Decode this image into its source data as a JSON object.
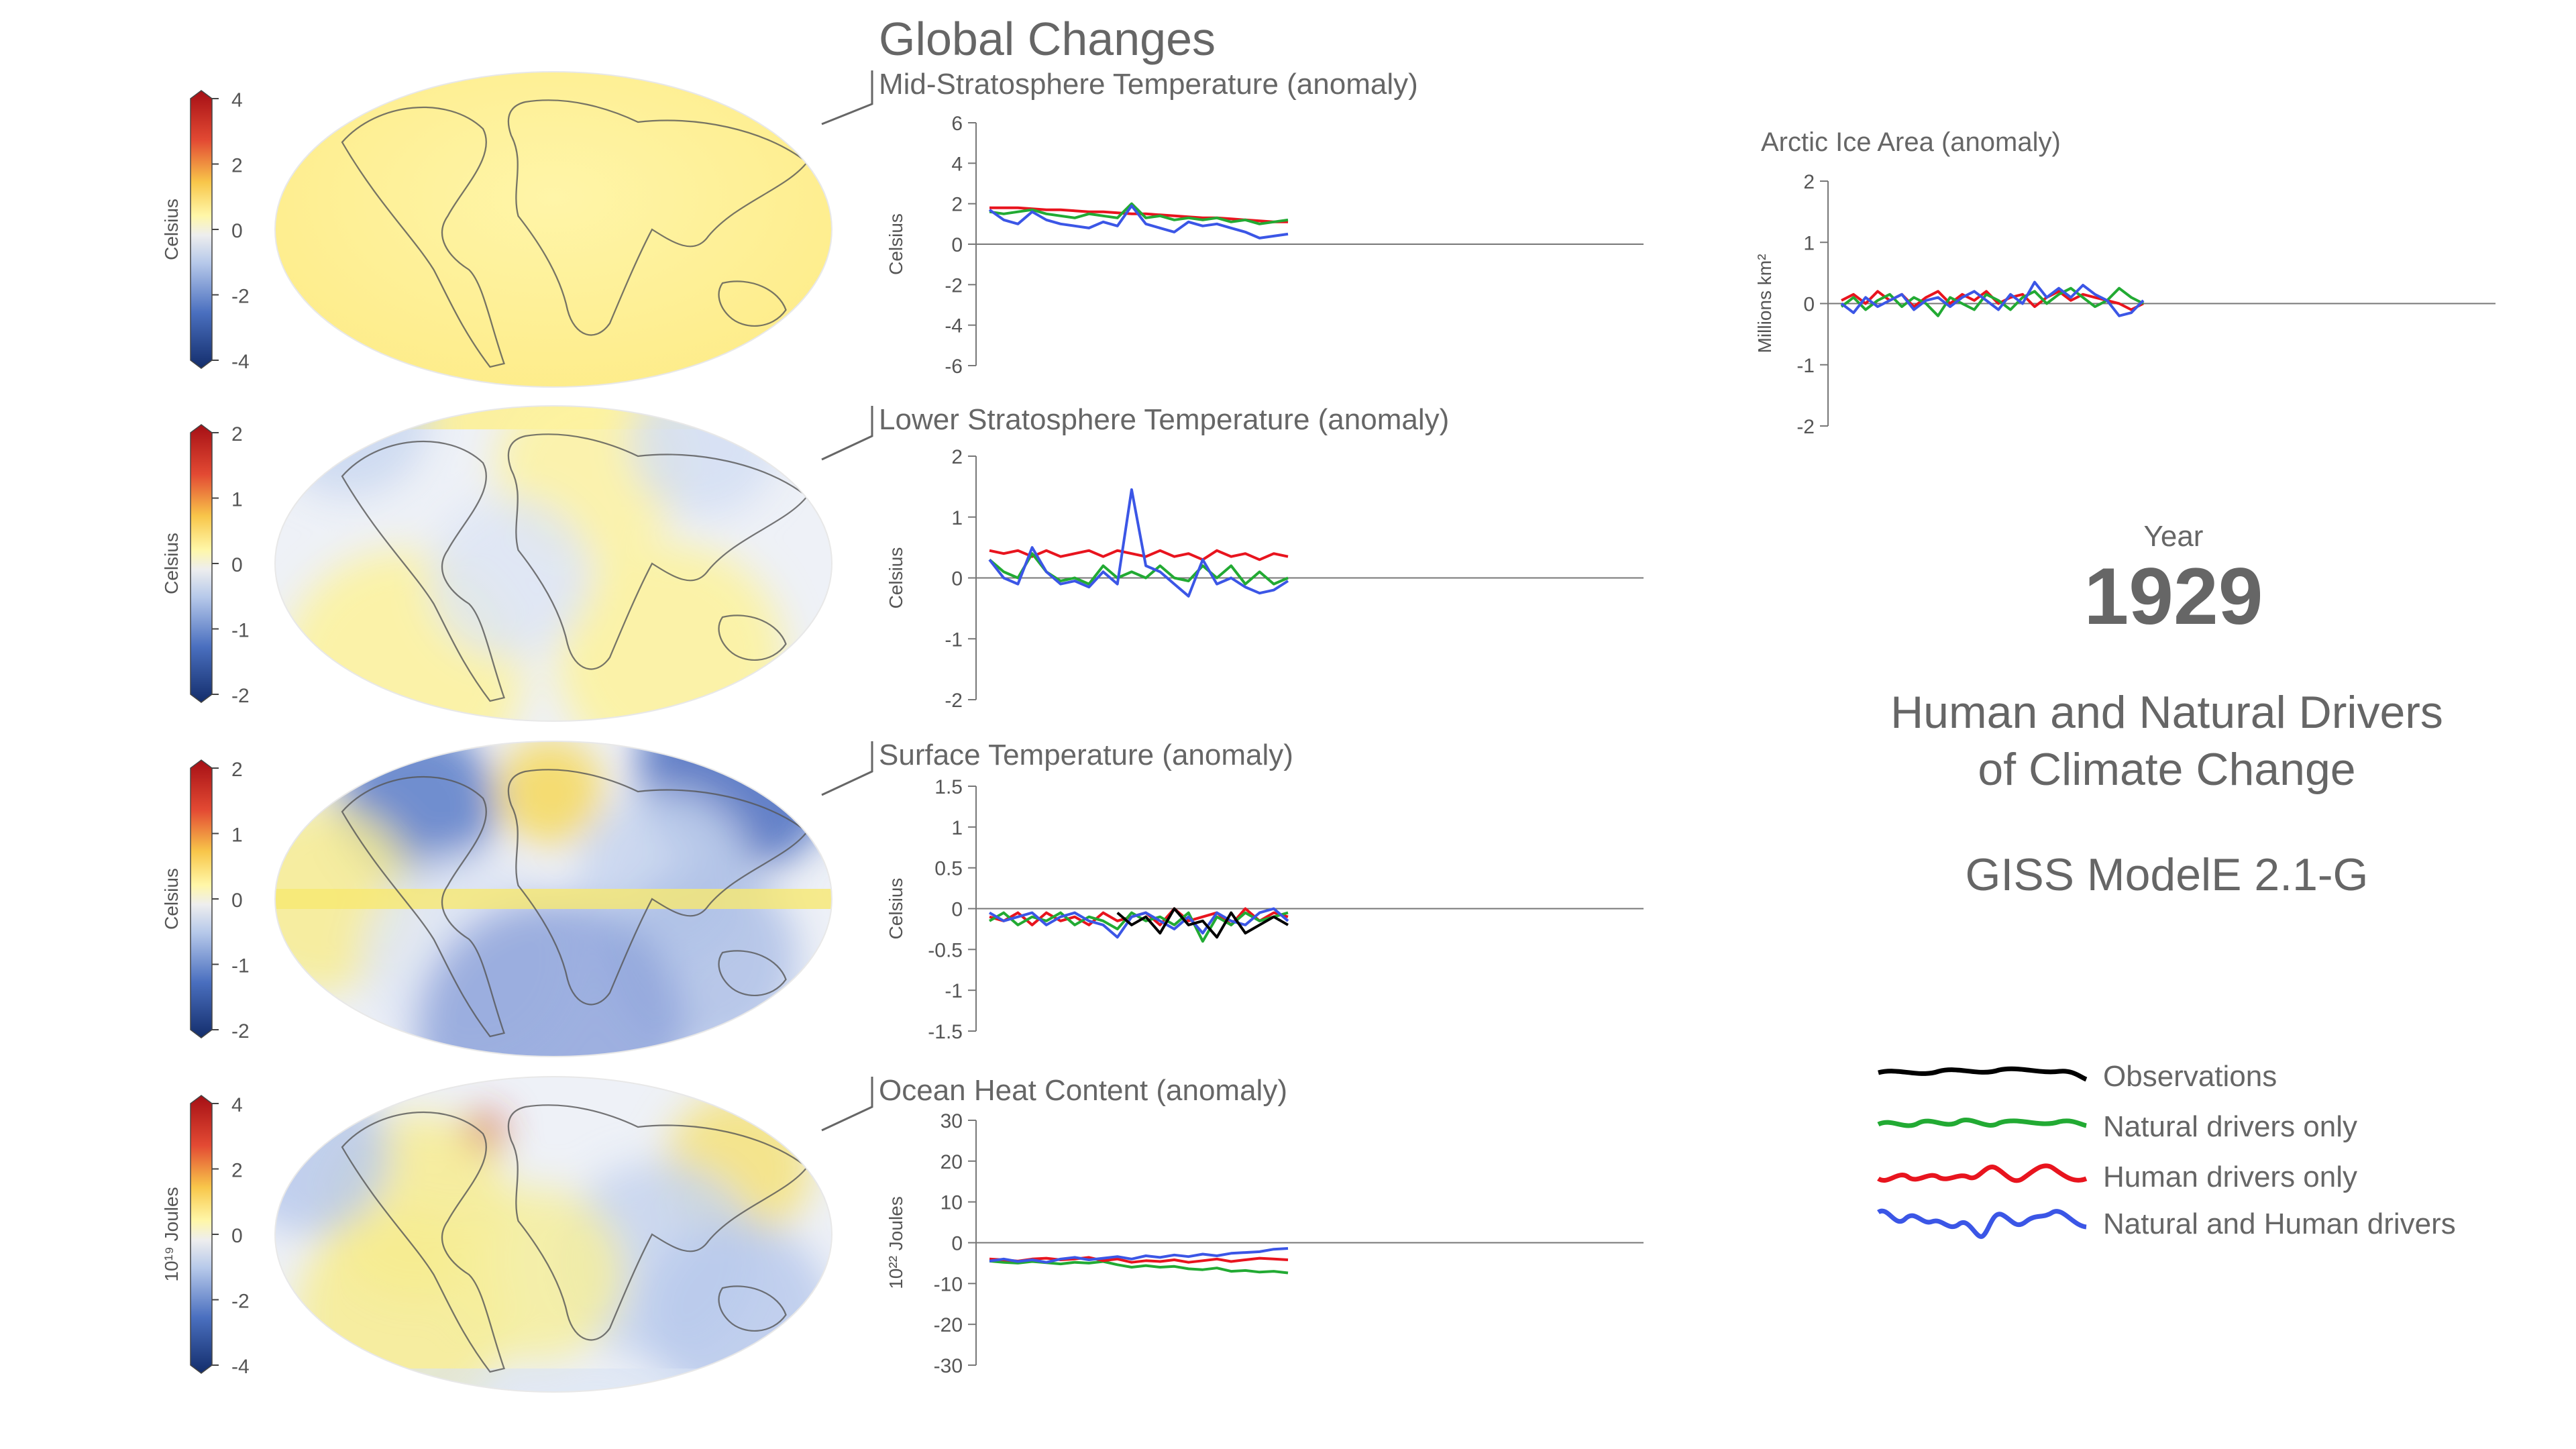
{
  "header": {
    "title": "Global Changes"
  },
  "info": {
    "year_label": "Year",
    "year": "1929",
    "headline_line1": "Human and Natural Drivers",
    "headline_line2": "of Climate Change",
    "model": "GISS ModelE 2.1-G"
  },
  "colors": {
    "observations": "#000000",
    "natural": "#22aa33",
    "human": "#e8141e",
    "both": "#3b56e6",
    "axis": "#777777",
    "text": "#666666"
  },
  "legend": [
    {
      "label": "Observations",
      "series": "observations"
    },
    {
      "label": "Natural drivers only",
      "series": "natural"
    },
    {
      "label": "Human drivers only",
      "series": "human"
    },
    {
      "label": "Natural and Human drivers",
      "series": "both"
    }
  ],
  "maps": [
    {
      "name": "mid-stratosphere-map",
      "unit": "Celsius",
      "ticks": [
        "4",
        "2",
        "0",
        "-2",
        "-4"
      ],
      "fill": "warm"
    },
    {
      "name": "lower-stratosphere-map",
      "unit": "Celsius",
      "ticks": [
        "2",
        "1",
        "0",
        "-1",
        "-2"
      ],
      "fill": "mixed"
    },
    {
      "name": "surface-map",
      "unit": "Celsius",
      "ticks": [
        "2",
        "1",
        "0",
        "-1",
        "-2"
      ],
      "fill": "mixed"
    },
    {
      "name": "ocean-heat-map",
      "unit": "10¹⁹ Joules",
      "ticks": [
        "4",
        "2",
        "0",
        "-2",
        "-4"
      ],
      "fill": "mixed"
    }
  ],
  "chart_data": [
    {
      "type": "line",
      "title": "Mid-Stratosphere Temperature (anomaly)",
      "ylabel": "Celsius",
      "ylim": [
        -6,
        6
      ],
      "yticks": [
        "6",
        "4",
        "2",
        "0",
        "-2",
        "-4",
        "-6"
      ],
      "grid": false,
      "series": [
        {
          "key": "human",
          "values": [
            1.8,
            1.8,
            1.8,
            1.75,
            1.7,
            1.7,
            1.65,
            1.6,
            1.6,
            1.55,
            1.5,
            1.5,
            1.45,
            1.4,
            1.35,
            1.3,
            1.3,
            1.25,
            1.2,
            1.15,
            1.1,
            1.1
          ]
        },
        {
          "key": "natural",
          "values": [
            1.6,
            1.5,
            1.6,
            1.7,
            1.5,
            1.4,
            1.3,
            1.5,
            1.4,
            1.3,
            2.0,
            1.3,
            1.4,
            1.2,
            1.3,
            1.2,
            1.3,
            1.1,
            1.2,
            1.0,
            1.1,
            1.2
          ]
        },
        {
          "key": "both",
          "values": [
            1.7,
            1.2,
            1.0,
            1.6,
            1.2,
            1.0,
            0.9,
            0.8,
            1.1,
            0.9,
            1.9,
            1.0,
            0.8,
            0.6,
            1.1,
            0.9,
            1.0,
            0.8,
            0.6,
            0.3,
            0.4,
            0.5
          ]
        }
      ]
    },
    {
      "type": "line",
      "title": "Lower Stratosphere Temperature (anomaly)",
      "ylabel": "Celsius",
      "ylim": [
        -2,
        2
      ],
      "yticks": [
        "2",
        "1",
        "0",
        "-1",
        "-2"
      ],
      "grid": false,
      "series": [
        {
          "key": "human",
          "values": [
            0.45,
            0.4,
            0.45,
            0.35,
            0.45,
            0.35,
            0.4,
            0.45,
            0.35,
            0.45,
            0.4,
            0.35,
            0.45,
            0.35,
            0.4,
            0.3,
            0.45,
            0.35,
            0.4,
            0.3,
            0.4,
            0.35
          ]
        },
        {
          "key": "natural",
          "values": [
            0.3,
            0.1,
            0.0,
            0.4,
            0.1,
            -0.05,
            0.0,
            -0.1,
            0.2,
            0.0,
            0.1,
            0.0,
            0.2,
            0.0,
            -0.05,
            0.2,
            0.0,
            0.2,
            -0.1,
            0.1,
            -0.1,
            0.0
          ]
        },
        {
          "key": "both",
          "values": [
            0.3,
            0.0,
            -0.1,
            0.5,
            0.1,
            -0.1,
            -0.05,
            -0.15,
            0.1,
            -0.1,
            1.45,
            0.2,
            0.1,
            -0.1,
            -0.3,
            0.3,
            -0.1,
            0.0,
            -0.15,
            -0.25,
            -0.2,
            -0.05
          ]
        }
      ]
    },
    {
      "type": "line",
      "title": "Surface Temperature (anomaly)",
      "ylabel": "Celsius",
      "ylim": [
        -1.5,
        1.5
      ],
      "yticks": [
        "1.5",
        "1",
        "0.5",
        "0",
        "-0.5",
        "-1",
        "-1.5"
      ],
      "grid": false,
      "series": [
        {
          "key": "human",
          "values": [
            -0.1,
            -0.15,
            -0.05,
            -0.2,
            -0.05,
            -0.15,
            -0.1,
            -0.2,
            -0.05,
            -0.15,
            -0.1,
            -0.05,
            -0.2,
            0.0,
            -0.15,
            -0.1,
            -0.05,
            -0.2,
            0.0,
            -0.15,
            -0.05,
            -0.1
          ]
        },
        {
          "key": "natural",
          "values": [
            -0.15,
            -0.05,
            -0.2,
            -0.1,
            -0.15,
            -0.05,
            -0.2,
            -0.1,
            -0.15,
            -0.25,
            -0.05,
            -0.15,
            -0.1,
            -0.2,
            -0.05,
            -0.4,
            -0.1,
            -0.2,
            -0.05,
            -0.15,
            -0.1,
            -0.05
          ]
        },
        {
          "key": "both",
          "values": [
            -0.05,
            -0.15,
            -0.1,
            -0.05,
            -0.2,
            -0.1,
            -0.05,
            -0.15,
            -0.2,
            -0.35,
            -0.1,
            -0.05,
            -0.15,
            -0.25,
            -0.1,
            -0.3,
            -0.05,
            -0.15,
            -0.2,
            -0.05,
            0.0,
            -0.15
          ]
        },
        {
          "key": "observations",
          "values": [
            null,
            null,
            null,
            null,
            null,
            null,
            null,
            null,
            null,
            -0.05,
            -0.2,
            -0.1,
            -0.3,
            0.0,
            -0.2,
            -0.15,
            -0.35,
            -0.05,
            -0.3,
            -0.2,
            -0.1,
            -0.2
          ]
        }
      ]
    },
    {
      "type": "line",
      "title": "Ocean Heat Content (anomaly)",
      "ylabel": "10²² Joules",
      "ylim": [
        -30,
        30
      ],
      "yticks": [
        "30",
        "20",
        "10",
        "0",
        "-10",
        "-20",
        "-30"
      ],
      "grid": false,
      "series": [
        {
          "key": "natural",
          "values": [
            -4.5,
            -4.8,
            -5.0,
            -4.6,
            -4.9,
            -5.2,
            -4.8,
            -5.0,
            -4.6,
            -5.4,
            -6.0,
            -5.6,
            -6.0,
            -5.8,
            -6.4,
            -6.6,
            -6.2,
            -7.0,
            -6.8,
            -7.2,
            -7.0,
            -7.4
          ]
        },
        {
          "key": "human",
          "values": [
            -4.0,
            -4.2,
            -4.5,
            -4.0,
            -3.8,
            -4.2,
            -4.0,
            -3.6,
            -4.4,
            -4.0,
            -4.8,
            -4.4,
            -4.6,
            -4.2,
            -4.8,
            -4.4,
            -4.0,
            -4.6,
            -4.2,
            -3.8,
            -4.0,
            -4.2
          ]
        },
        {
          "key": "both",
          "values": [
            -4.5,
            -4.0,
            -4.6,
            -4.2,
            -4.8,
            -4.0,
            -3.6,
            -4.2,
            -3.8,
            -3.4,
            -4.0,
            -3.2,
            -3.6,
            -3.0,
            -3.4,
            -2.8,
            -3.2,
            -2.6,
            -2.4,
            -2.2,
            -1.6,
            -1.4
          ]
        }
      ]
    },
    {
      "type": "line",
      "title": "Arctic Ice Area (anomaly)",
      "ylabel": "Millions km²",
      "ylim": [
        -2,
        2
      ],
      "yticks": [
        "2",
        "1",
        "0",
        "-1",
        "-2"
      ],
      "grid": false,
      "series": [
        {
          "key": "human",
          "values": [
            0.05,
            0.15,
            0.0,
            0.2,
            0.05,
            0.15,
            -0.05,
            0.1,
            0.2,
            0.0,
            0.15,
            0.05,
            0.2,
            0.0,
            0.1,
            0.15,
            -0.05,
            0.1,
            0.2,
            0.05,
            0.15,
            0.1,
            0.05,
            0.0,
            -0.1,
            0.0
          ]
        },
        {
          "key": "natural",
          "values": [
            -0.05,
            0.1,
            -0.1,
            0.05,
            0.15,
            -0.05,
            0.1,
            0.0,
            -0.2,
            0.1,
            0.0,
            -0.1,
            0.15,
            0.05,
            -0.1,
            0.1,
            0.2,
            0.0,
            0.15,
            0.25,
            0.1,
            -0.05,
            0.05,
            0.25,
            0.1,
            0.0
          ]
        },
        {
          "key": "both",
          "values": [
            0.0,
            -0.15,
            0.1,
            -0.05,
            0.05,
            0.15,
            -0.1,
            0.05,
            0.1,
            -0.05,
            0.1,
            0.2,
            0.05,
            -0.1,
            0.15,
            0.0,
            0.35,
            0.1,
            0.25,
            0.1,
            0.3,
            0.15,
            0.05,
            -0.2,
            -0.15,
            0.05
          ]
        }
      ]
    }
  ]
}
